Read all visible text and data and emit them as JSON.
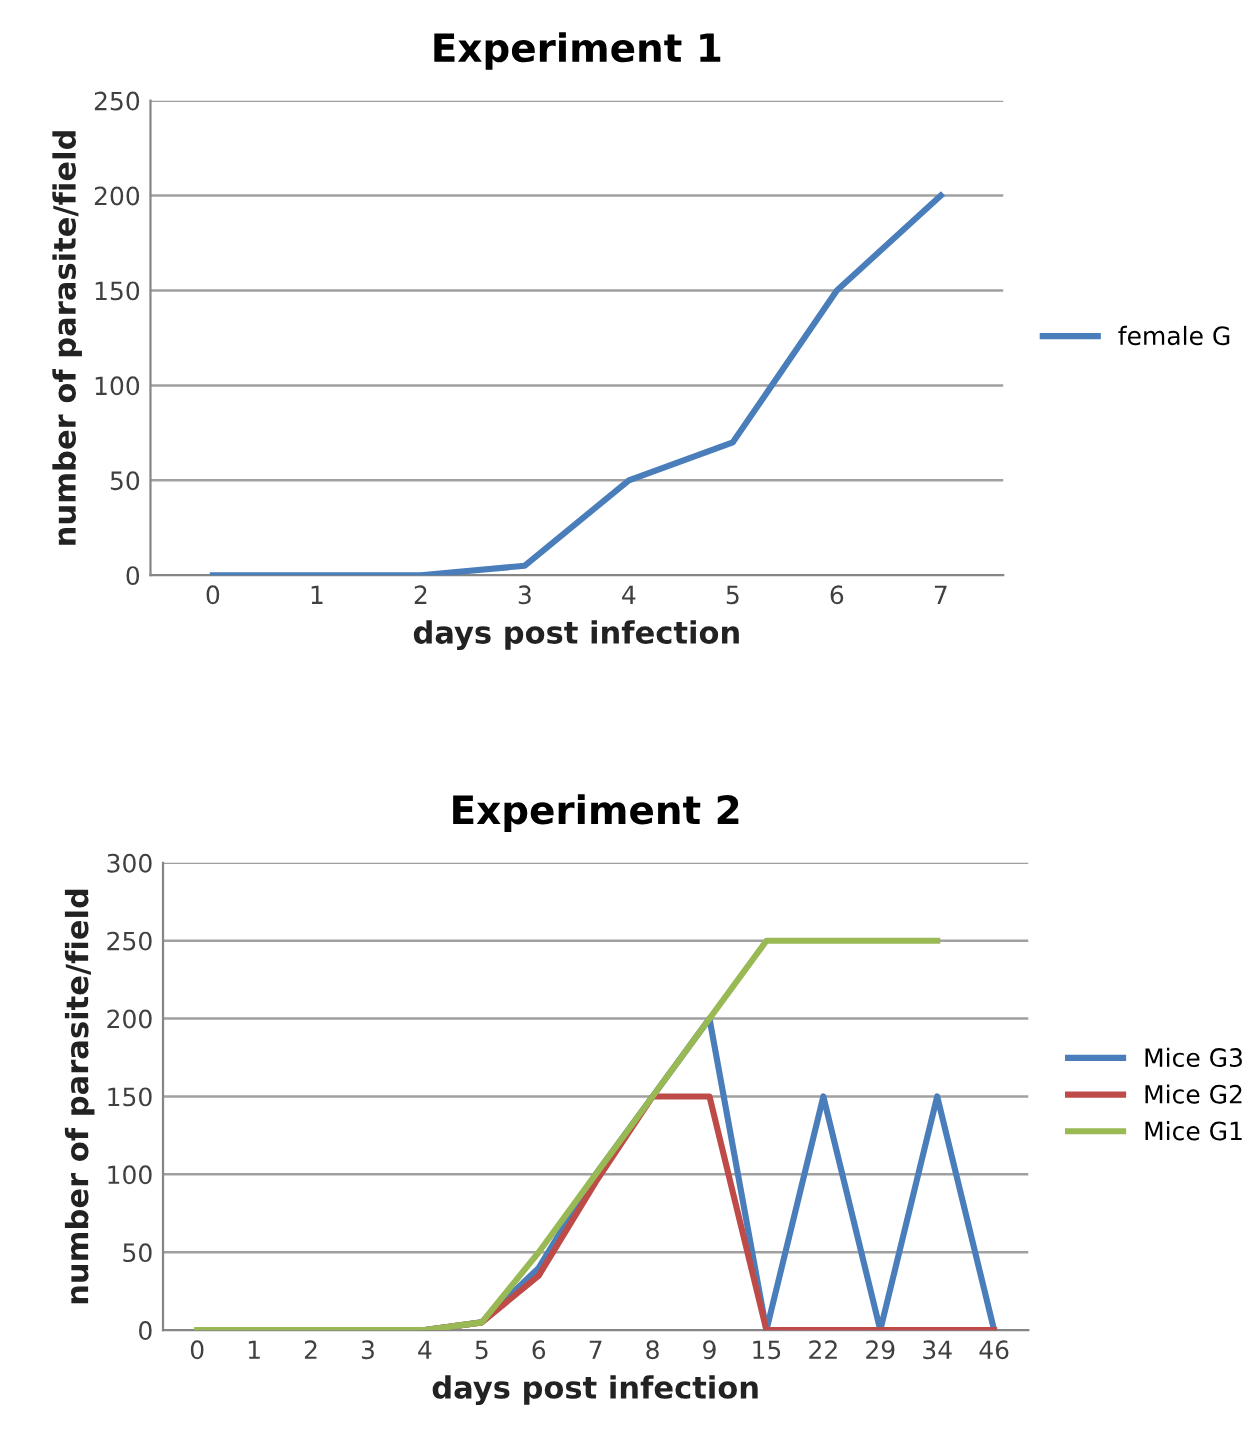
{
  "chart_data": [
    {
      "type": "line",
      "title": "Experiment 1",
      "xlabel": "days post infection",
      "ylabel": "number of parasite/field",
      "categories": [
        "0",
        "1",
        "2",
        "3",
        "4",
        "5",
        "6",
        "7"
      ],
      "series": [
        {
          "name": "female G",
          "color": "#4a7ebb",
          "values": [
            0,
            0,
            0,
            5,
            50,
            70,
            150,
            200
          ]
        }
      ],
      "ylim": [
        0,
        250
      ],
      "yticks": [
        0,
        50,
        100,
        150,
        200,
        250
      ],
      "grid": "y",
      "legend": "right",
      "marker": "none",
      "line_style": "solid"
    },
    {
      "type": "line",
      "title": "Experiment 2",
      "xlabel": "days post infection",
      "ylabel": "number of parasite/field",
      "categories": [
        "0",
        "1",
        "2",
        "3",
        "4",
        "5",
        "6",
        "7",
        "8",
        "9",
        "15",
        "22",
        "29",
        "34",
        "46"
      ],
      "series": [
        {
          "name": "Mice G3",
          "color": "#4a7ebb",
          "values": [
            null,
            null,
            null,
            null,
            0,
            5,
            40,
            100,
            150,
            200,
            0,
            150,
            0,
            150,
            0
          ]
        },
        {
          "name": "Mice G2",
          "color": "#be4b48",
          "values": [
            null,
            null,
            null,
            null,
            0,
            5,
            35,
            95,
            150,
            150,
            0,
            0,
            0,
            0,
            0
          ]
        },
        {
          "name": "Mice G1",
          "color": "#98b954",
          "values": [
            0,
            0,
            0,
            0,
            0,
            5,
            50,
            100,
            150,
            200,
            250,
            250,
            250,
            250,
            null
          ]
        }
      ],
      "ylim": [
        0,
        300
      ],
      "yticks": [
        0,
        50,
        100,
        150,
        200,
        250,
        300
      ],
      "grid": "y",
      "legend": "right",
      "marker": "none",
      "line_style": "solid"
    }
  ]
}
